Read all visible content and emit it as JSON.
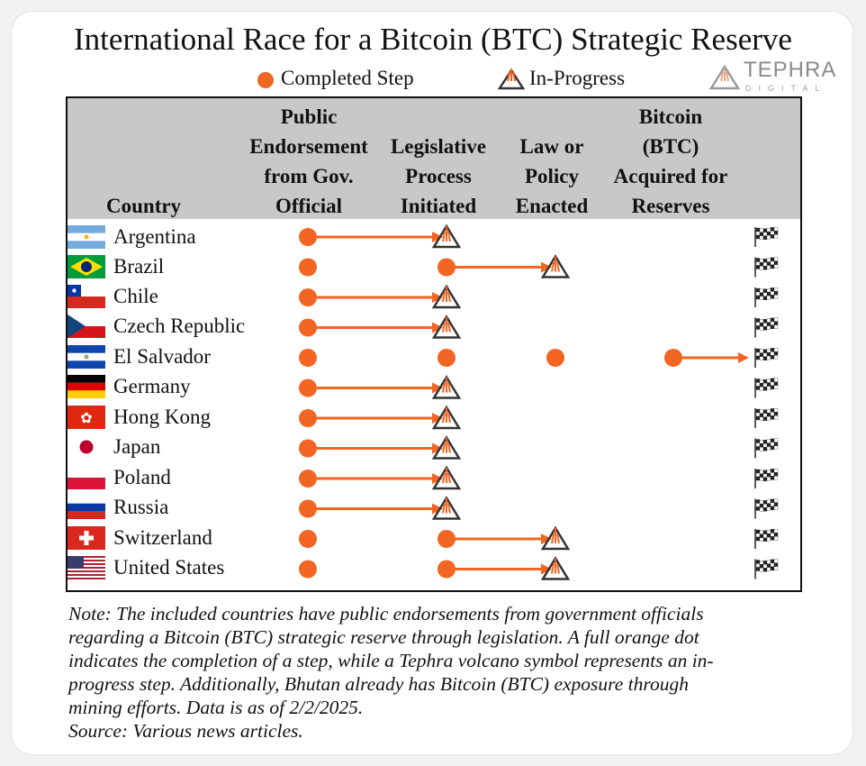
{
  "title": "International Race for a Bitcoin (BTC) Strategic Reserve",
  "legend": {
    "completed_label": "Completed Step",
    "in_progress_label": "In-Progress"
  },
  "logo": {
    "name": "TEPHRA",
    "sub": "DIGITAL"
  },
  "columns": {
    "country": "Country",
    "step1": [
      "Public",
      "Endorsement",
      "from Gov.",
      "Official"
    ],
    "step2": [
      "Legislative",
      "Process",
      "Initiated"
    ],
    "step3": [
      "Law or",
      "Policy",
      "Enacted"
    ],
    "step4": [
      "Bitcoin",
      "(BTC)",
      "Acquired for",
      "Reserves"
    ]
  },
  "colors": {
    "accent": "#f26522",
    "header_bg": "#c8c8c8",
    "volcano_outline": "#333333"
  },
  "rows": [
    {
      "country": "Argentina",
      "completed": 1,
      "in_progress": true
    },
    {
      "country": "Brazil",
      "completed": 2,
      "in_progress": true
    },
    {
      "country": "Chile",
      "completed": 1,
      "in_progress": true
    },
    {
      "country": "Czech Republic",
      "completed": 1,
      "in_progress": true
    },
    {
      "country": "El Salvador",
      "completed": 4,
      "in_progress": false
    },
    {
      "country": "Germany",
      "completed": 1,
      "in_progress": true
    },
    {
      "country": "Hong Kong",
      "completed": 1,
      "in_progress": true
    },
    {
      "country": "Japan",
      "completed": 1,
      "in_progress": true
    },
    {
      "country": "Poland",
      "completed": 1,
      "in_progress": true
    },
    {
      "country": "Russia",
      "completed": 1,
      "in_progress": true
    },
    {
      "country": "Switzerland",
      "completed": 2,
      "in_progress": true
    },
    {
      "country": "United States",
      "completed": 2,
      "in_progress": true
    }
  ],
  "note": {
    "lines": [
      "Note: The included countries have public endorsements from government officials",
      "regarding a Bitcoin (BTC) strategic reserve through legislation. A full orange dot",
      "indicates the completion of a step, while a Tephra volcano symbol represents an in-",
      "progress step. Additionally, Bhutan already has Bitcoin (BTC) exposure through",
      "mining efforts. Data is as of 2/2/2025."
    ],
    "source": "Source: Various news articles."
  }
}
